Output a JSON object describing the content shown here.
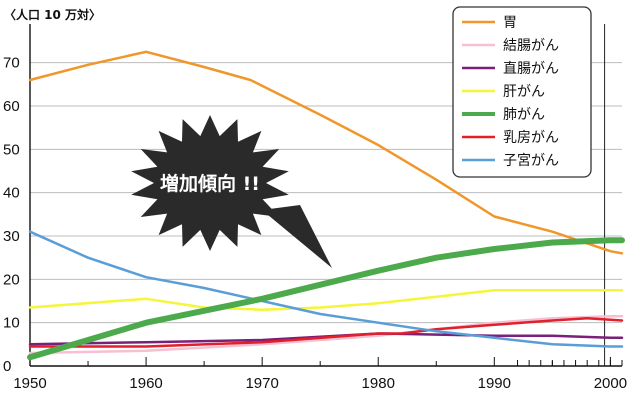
{
  "chart_data": {
    "type": "line",
    "ylabel": "〈人口 10 万対〉",
    "xlim": [
      1950,
      2001
    ],
    "ylim": [
      0,
      78
    ],
    "y_ticks": [
      0,
      10,
      20,
      30,
      40,
      50,
      60,
      70
    ],
    "y_tick_labels": [
      "0",
      "10",
      "20",
      "30",
      "40",
      "50",
      "60",
      "70"
    ],
    "x_ticks": [
      1950,
      1960,
      1970,
      1980,
      1990,
      2000
    ],
    "x_tick_labels": [
      "1950",
      "1960",
      "1970",
      "1980",
      "1990",
      "2000"
    ],
    "grid": "horizontal",
    "legend_position": "top-right",
    "annotation": "増加傾向 !!",
    "series": [
      {
        "name": "胃",
        "color": "#f0962a",
        "width": 2.5,
        "x": [
          1950,
          1955,
          1960,
          1965,
          1969,
          1975,
          1980,
          1985,
          1990,
          1995,
          2000,
          2001
        ],
        "y": [
          66,
          69.5,
          72.5,
          69,
          66,
          58,
          51,
          43,
          34.5,
          31,
          26.5,
          26
        ]
      },
      {
        "name": "結腸がん",
        "color": "#f7bfd0",
        "width": 2.5,
        "x": [
          1950,
          1960,
          1970,
          1980,
          1985,
          1990,
          1995,
          2000,
          2001
        ],
        "y": [
          3,
          3.5,
          5,
          7,
          8.5,
          10,
          11,
          11.5,
          11.5
        ]
      },
      {
        "name": "直腸がん",
        "color": "#7a1f7a",
        "width": 2.5,
        "x": [
          1950,
          1960,
          1970,
          1980,
          1990,
          1995,
          2000,
          2001
        ],
        "y": [
          5,
          5.5,
          6,
          7.5,
          7,
          7,
          6.5,
          6.5
        ]
      },
      {
        "name": "肝がん",
        "color": "#f5f53a",
        "width": 2.5,
        "x": [
          1950,
          1960,
          1965,
          1970,
          1975,
          1980,
          1985,
          1990,
          1995,
          2000,
          2001
        ],
        "y": [
          13.5,
          15.5,
          13.5,
          13,
          13.5,
          14.5,
          16,
          17.5,
          17.5,
          17.5,
          17.5
        ]
      },
      {
        "name": "肺がん",
        "color": "#4caa4c",
        "width": 6,
        "x": [
          1950,
          1960,
          1970,
          1980,
          1985,
          1990,
          1995,
          2000,
          2001
        ],
        "y": [
          2,
          10,
          15.5,
          22,
          25,
          27,
          28.5,
          29,
          29
        ]
      },
      {
        "name": "乳房がん",
        "color": "#e0202a",
        "width": 2.5,
        "x": [
          1950,
          1960,
          1970,
          1980,
          1982,
          1985,
          1990,
          1995,
          1998,
          2001
        ],
        "y": [
          4.5,
          4.5,
          5.5,
          7.5,
          7.5,
          8.5,
          9.5,
          10.5,
          11,
          10.5
        ]
      },
      {
        "name": "子宮がん",
        "color": "#5a9ed8",
        "width": 2.5,
        "x": [
          1950,
          1955,
          1960,
          1965,
          1970,
          1975,
          1980,
          1985,
          1990,
          1995,
          2000,
          2001
        ],
        "y": [
          31,
          25,
          20.5,
          18,
          15,
          12,
          10,
          8,
          6.5,
          5,
          4.5,
          4.5
        ]
      }
    ]
  }
}
